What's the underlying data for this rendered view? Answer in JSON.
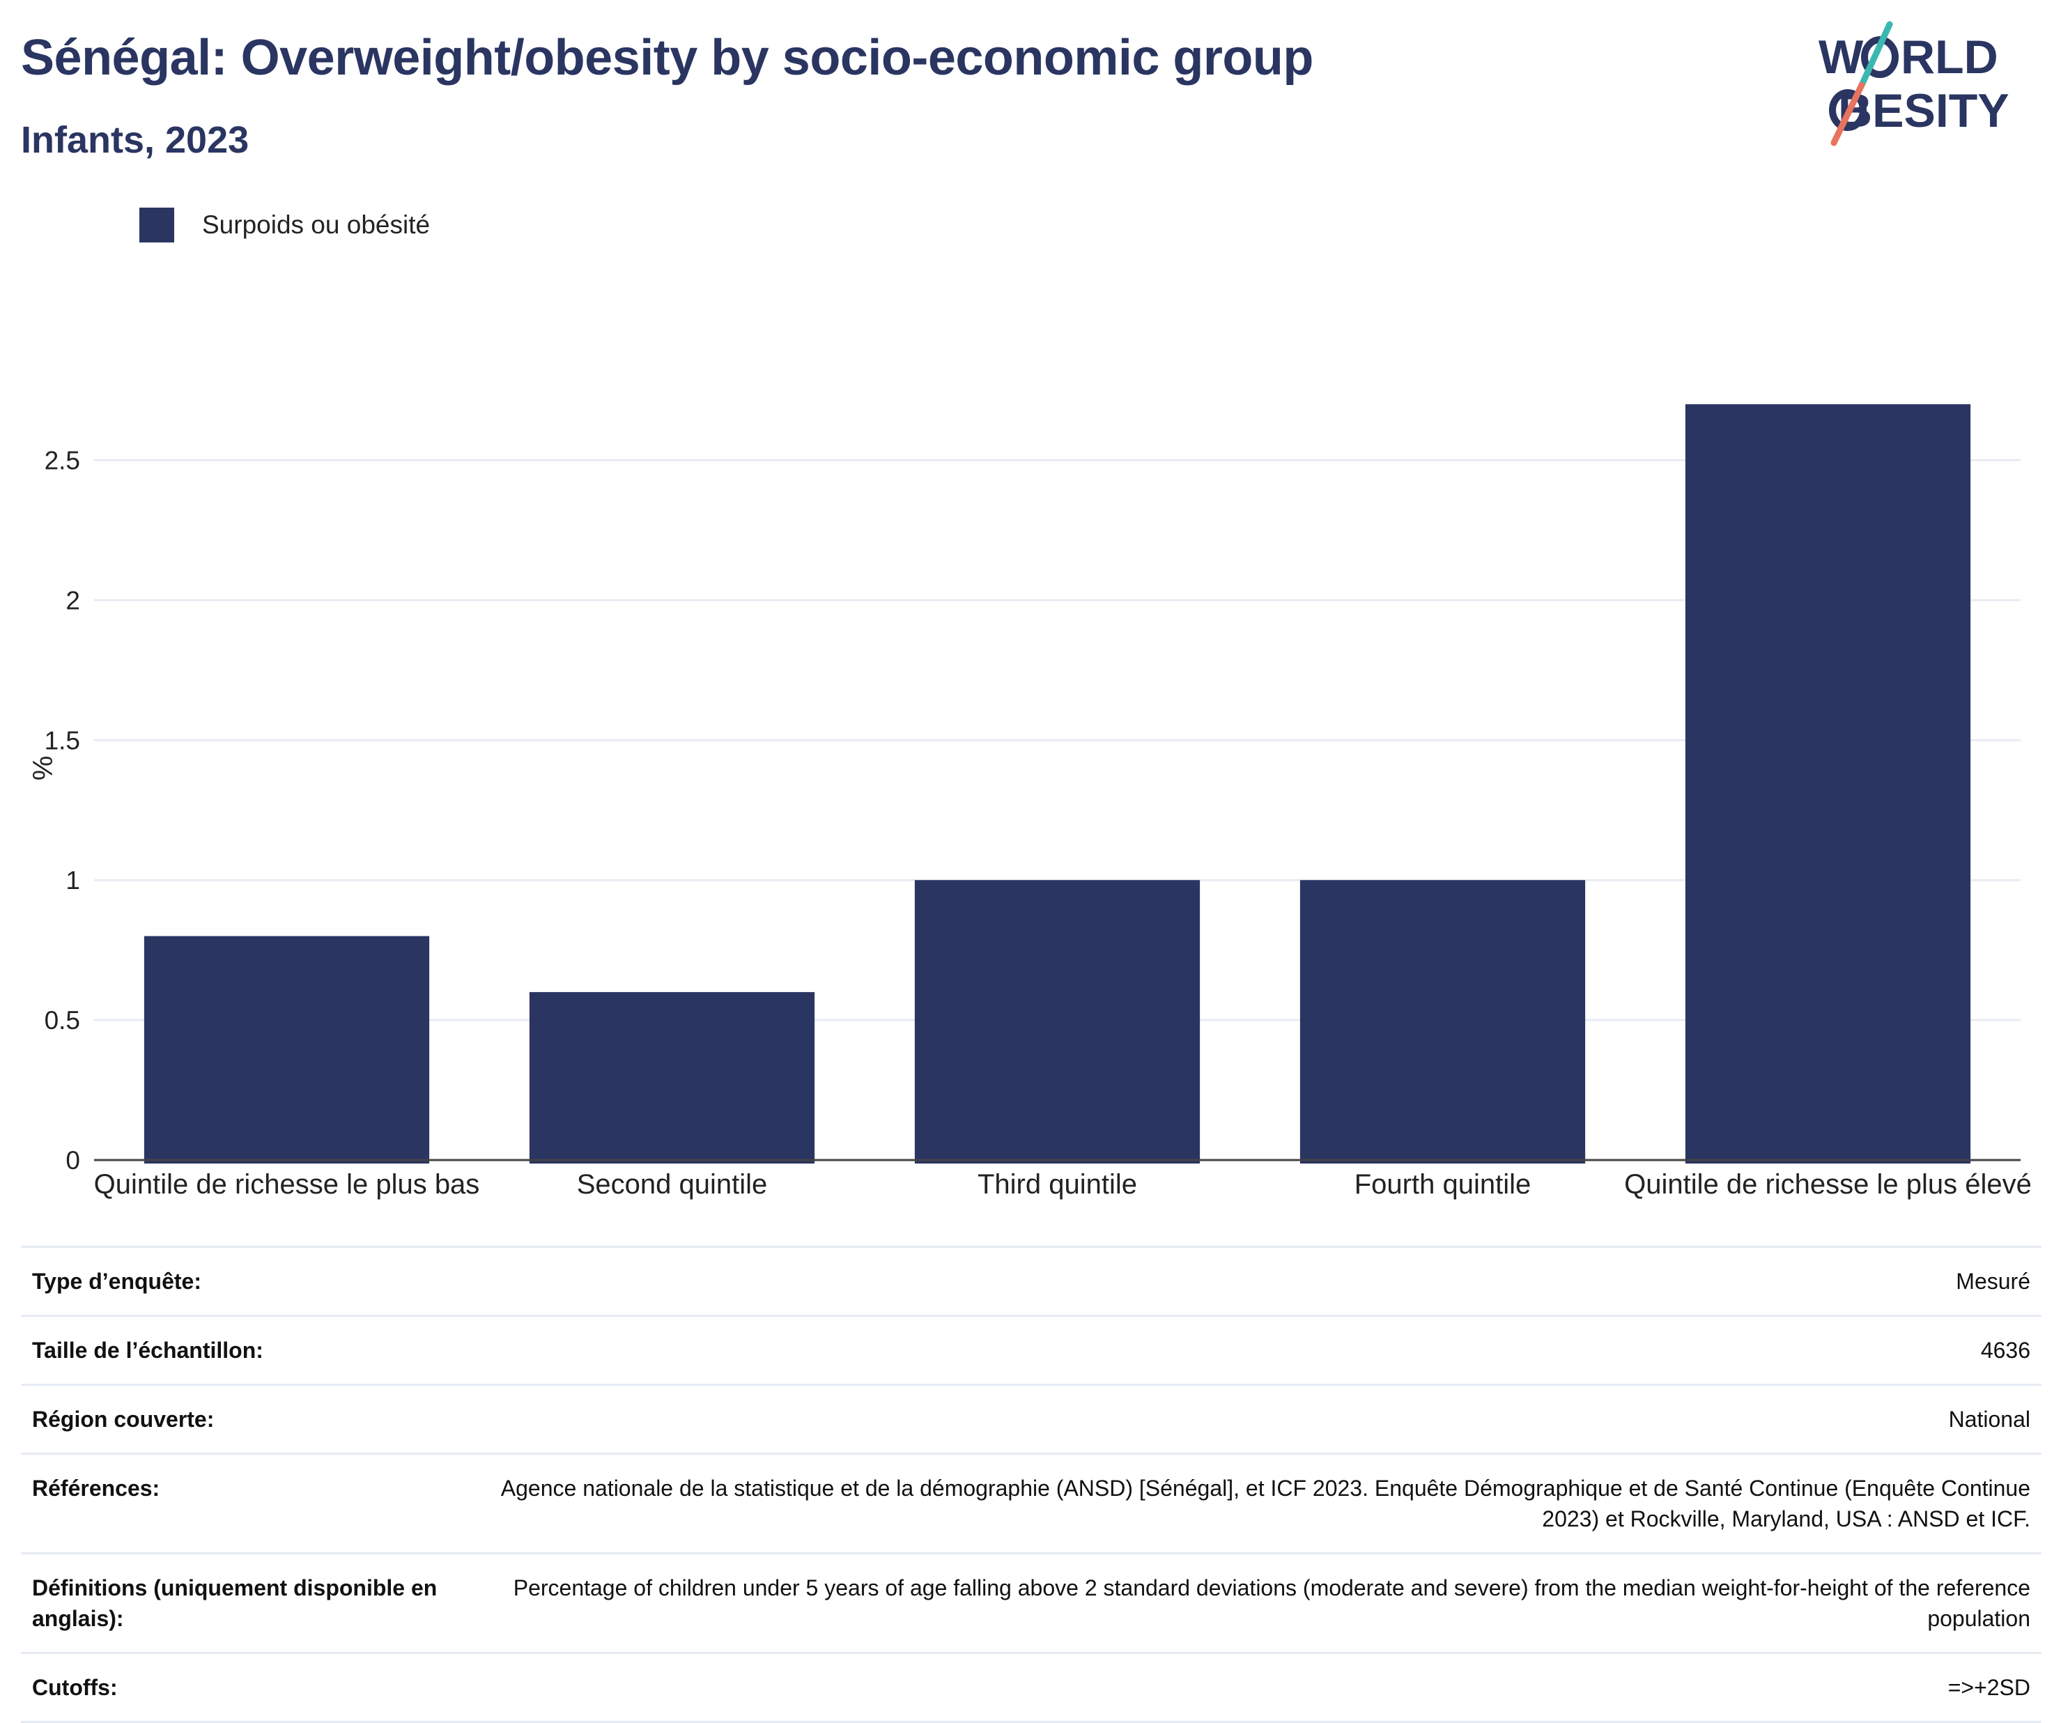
{
  "header": {
    "title": "Sénégal: Overweight/obesity by socio-economic group",
    "subtitle": "Infants, 2023"
  },
  "logo": {
    "line1": "WORLD",
    "line2": "OBESITY"
  },
  "legend": {
    "label": "Surpoids ou obésité"
  },
  "colors": {
    "bar": "#2a3561",
    "title": "#2a3561",
    "accent_teal": "#3ab8b0",
    "accent_coral": "#e8735f"
  },
  "chart_data": {
    "type": "bar",
    "title": "Sénégal: Overweight/obesity by socio-economic group",
    "subtitle": "Infants, 2023",
    "categories": [
      "Quintile de richesse le plus bas",
      "Second quintile",
      "Third quintile",
      "Fourth quintile",
      "Quintile de richesse le plus élevé"
    ],
    "series": [
      {
        "name": "Surpoids ou obésité",
        "values": [
          0.8,
          0.6,
          1.0,
          1.0,
          2.7
        ]
      }
    ],
    "xlabel": "",
    "ylabel": "%",
    "ylim": [
      0,
      2.8
    ],
    "yticks": [
      0,
      0.5,
      1,
      1.5,
      2,
      2.5
    ],
    "ytick_labels": [
      "0",
      "0.5",
      "1",
      "1.5",
      "2",
      "2.5"
    ],
    "grid": true,
    "legend_position": "top-left"
  },
  "info": [
    {
      "label": "Type d’enquête:",
      "value": "Mesuré"
    },
    {
      "label": "Taille de l’échantillon:",
      "value": "4636"
    },
    {
      "label": "Région couverte:",
      "value": "National"
    },
    {
      "label": "Références:",
      "value": "Agence nationale de la statistique et de la démographie (ANSD) [Sénégal], et ICF 2023. Enquête Démographique et de Santé Continue (Enquête Continue 2023) et Rockville, Maryland, USA : ANSD et ICF."
    },
    {
      "label": "Définitions (uniquement disponible en anglais):",
      "value": "Percentage of children under 5 years of age falling above 2 standard deviations (moderate and severe) from the median weight-for-height of the reference population"
    },
    {
      "label": "Cutoffs:",
      "value": "=>+2SD"
    }
  ]
}
